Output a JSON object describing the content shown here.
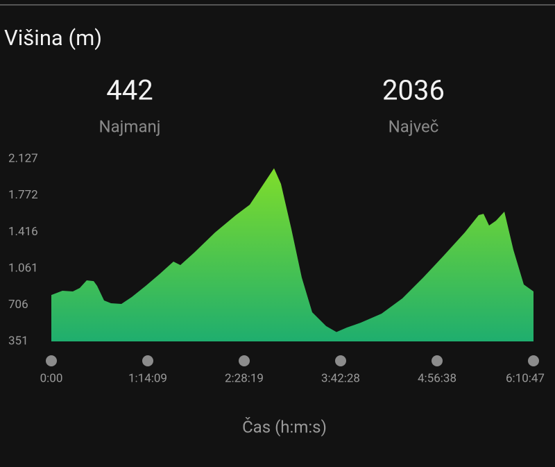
{
  "chart_data": {
    "type": "area",
    "title": "Višina (m)",
    "stats": [
      {
        "value": 442,
        "label": "Najmanj"
      },
      {
        "value": 2036,
        "label": "Največ"
      }
    ],
    "x_label": "Čas (h:m:s)",
    "x": [
      0,
      512,
      992,
      1312,
      1632,
      1953,
      2113,
      2433,
      2753,
      3233,
      3713,
      4353,
      4993,
      5634,
      5954,
      6594,
      7554,
      8515,
      9155,
      9795,
      10275,
      10595,
      11075,
      11555,
      12036,
      12676,
      13156,
      13636,
      14276,
      15236,
      16197,
      17157,
      18117,
      19078,
      19718,
      19942,
      20198,
      20518,
      20903,
      21319,
      21799,
      22247
    ],
    "values": [
      803,
      844,
      837,
      871,
      945,
      938,
      891,
      749,
      722,
      716,
      783,
      891,
      1006,
      1128,
      1094,
      1215,
      1411,
      1580,
      1681,
      1884,
      2036,
      1884,
      1445,
      972,
      635,
      500,
      442,
      486,
      533,
      621,
      770,
      972,
      1188,
      1411,
      1580,
      1593,
      1479,
      1526,
      1614,
      1242,
      905,
      837
    ],
    "xlim": [
      0,
      22247
    ],
    "xticks": [
      {
        "value": 0,
        "label": "0:00"
      },
      {
        "value": 4449,
        "label": "1:14:09"
      },
      {
        "value": 8899,
        "label": "2:28:19"
      },
      {
        "value": 13348,
        "label": "3:42:28"
      },
      {
        "value": 17798,
        "label": "4:56:38"
      },
      {
        "value": 22247,
        "label": "6:10:47"
      }
    ],
    "ylim": [
      351,
      2127
    ],
    "yticks": [
      {
        "value": 2127,
        "label": "2.127"
      },
      {
        "value": 1772,
        "label": "1.772"
      },
      {
        "value": 1416,
        "label": "1.416"
      },
      {
        "value": 1061,
        "label": "1.061"
      },
      706,
      351
    ],
    "color": "#7fdd2b",
    "color_bottom": "#1fae6e",
    "grid": false
  }
}
